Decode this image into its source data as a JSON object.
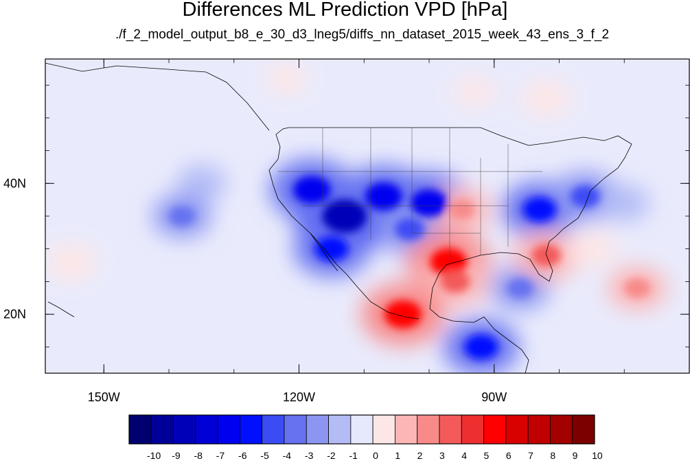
{
  "chart_data": {
    "type": "heatmap",
    "title": "Differences ML Prediction VPD [hPa]",
    "subtitle": "./f_2_model_output_b8_e_30_d3_lneg5/diffs_nn_dataset_2015_week_43_ens_3_f_2",
    "x_ticks": [
      {
        "lon": -150,
        "label": "150W"
      },
      {
        "lon": -120,
        "label": "120W"
      },
      {
        "lon": -90,
        "label": "90W"
      }
    ],
    "y_ticks": [
      {
        "lat": 40,
        "label": "40N"
      },
      {
        "lat": 20,
        "label": "20N"
      }
    ],
    "xlim": [
      -159,
      -60
    ],
    "ylim": [
      11,
      59
    ],
    "colorbar": {
      "labels": [
        "-10",
        "-9",
        "-8",
        "-7",
        "-6",
        "-5",
        "-4",
        "-3",
        "-2",
        "-1",
        "0",
        "1",
        "2",
        "3",
        "4",
        "5",
        "6",
        "7",
        "8",
        "9",
        "10"
      ],
      "colors": [
        "#00006f",
        "#000098",
        "#0000b8",
        "#0000d6",
        "#0000f0",
        "#0010ff",
        "#3c4cf5",
        "#6672f0",
        "#8c96f2",
        "#b4bcf6",
        "#e6e8fc",
        "#fde6e6",
        "#fcb6b6",
        "#f88a8a",
        "#f35a5a",
        "#ee2f2f",
        "#ff0000",
        "#d90000",
        "#c00000",
        "#a30000",
        "#7c0000"
      ]
    },
    "blobs": [
      {
        "lon": -113,
        "lat": 35,
        "value": -8
      },
      {
        "lon": -118,
        "lat": 39,
        "value": -6
      },
      {
        "lon": -107,
        "lat": 38,
        "value": -6
      },
      {
        "lon": -100,
        "lat": 37,
        "value": -6
      },
      {
        "lon": -103,
        "lat": 33,
        "value": -4
      },
      {
        "lon": -115,
        "lat": 30,
        "value": -5
      },
      {
        "lon": -135,
        "lat": 40,
        "value": -2
      },
      {
        "lon": -138,
        "lat": 35,
        "value": -3
      },
      {
        "lon": -83,
        "lat": 36,
        "value": -5
      },
      {
        "lon": -76,
        "lat": 38,
        "value": -4
      },
      {
        "lon": -70,
        "lat": 37,
        "value": -2
      },
      {
        "lon": -80,
        "lat": 30,
        "value": -2
      },
      {
        "lon": -86,
        "lat": 24,
        "value": -3
      },
      {
        "lon": -92,
        "lat": 15,
        "value": -5
      },
      {
        "lon": -97,
        "lat": 28,
        "value": 6
      },
      {
        "lon": -96,
        "lat": 25,
        "value": 4
      },
      {
        "lon": -95,
        "lat": 36,
        "value": 3
      },
      {
        "lon": -104,
        "lat": 20,
        "value": 6
      },
      {
        "lon": -82,
        "lat": 29,
        "value": 4
      },
      {
        "lon": -75,
        "lat": 30,
        "value": 2
      },
      {
        "lon": -68,
        "lat": 24,
        "value": 3
      },
      {
        "lon": -82,
        "lat": 53,
        "value": 2
      },
      {
        "lon": -93,
        "lat": 54,
        "value": 1
      },
      {
        "lon": -155,
        "lat": 28,
        "value": 2
      },
      {
        "lon": -122,
        "lat": 56,
        "value": 1
      }
    ]
  }
}
